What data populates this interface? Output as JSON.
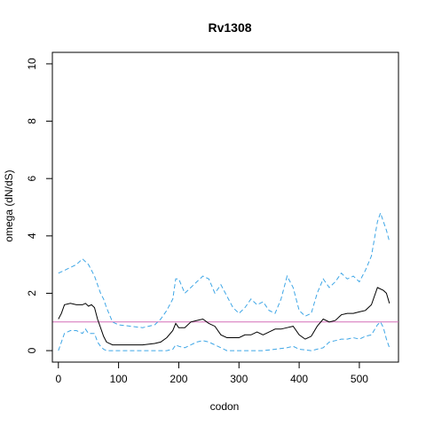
{
  "chart_data": {
    "type": "line",
    "title": "Rv1308",
    "xlabel": "codon",
    "ylabel": "omega (dN/dS)",
    "xlim": [
      -10,
      565
    ],
    "ylim": [
      -0.4,
      10.4
    ],
    "x_ticks": [
      0,
      100,
      200,
      300,
      400,
      500
    ],
    "y_ticks": [
      0,
      2,
      4,
      6,
      8,
      10
    ],
    "grid": false,
    "reference_line": {
      "y": 1,
      "color": "#d36fb8"
    },
    "series": [
      {
        "style": "dashed",
        "color": "#3ea6e6",
        "x": [
          0,
          10,
          20,
          30,
          40,
          45,
          50,
          60,
          65,
          70,
          75,
          80,
          90,
          100,
          120,
          140,
          150,
          160,
          170,
          180,
          190,
          195,
          200,
          210,
          220,
          230,
          240,
          250,
          260,
          270,
          280,
          290,
          300,
          310,
          320,
          330,
          340,
          350,
          360,
          370,
          380,
          390,
          400,
          410,
          420,
          430,
          440,
          450,
          460,
          470,
          480,
          490,
          500,
          510,
          520,
          530,
          535,
          540,
          545,
          550
        ],
        "y": [
          2.7,
          2.8,
          2.9,
          3.0,
          3.2,
          3.1,
          3.0,
          2.6,
          2.3,
          2.0,
          1.8,
          1.5,
          1.0,
          0.9,
          0.85,
          0.8,
          0.85,
          0.9,
          1.1,
          1.4,
          1.8,
          2.5,
          2.5,
          2.0,
          2.2,
          2.4,
          2.6,
          2.5,
          2.0,
          2.3,
          1.9,
          1.5,
          1.3,
          1.5,
          1.8,
          1.6,
          1.7,
          1.4,
          1.3,
          1.8,
          2.6,
          2.2,
          1.4,
          1.2,
          1.3,
          2.0,
          2.5,
          2.2,
          2.4,
          2.7,
          2.5,
          2.6,
          2.4,
          2.8,
          3.3,
          4.5,
          4.8,
          4.5,
          4.2,
          3.8
        ]
      },
      {
        "style": "solid",
        "color": "#000000",
        "x": [
          0,
          5,
          10,
          20,
          30,
          40,
          45,
          50,
          55,
          60,
          65,
          70,
          75,
          80,
          90,
          100,
          120,
          140,
          160,
          170,
          180,
          190,
          195,
          200,
          210,
          220,
          230,
          240,
          250,
          260,
          270,
          280,
          290,
          300,
          310,
          320,
          330,
          340,
          350,
          360,
          370,
          380,
          390,
          400,
          410,
          420,
          430,
          440,
          450,
          460,
          470,
          480,
          490,
          500,
          510,
          520,
          530,
          540,
          545,
          550
        ],
        "y": [
          1.1,
          1.3,
          1.6,
          1.65,
          1.6,
          1.6,
          1.65,
          1.55,
          1.6,
          1.5,
          1.1,
          0.8,
          0.5,
          0.3,
          0.2,
          0.2,
          0.2,
          0.2,
          0.25,
          0.3,
          0.45,
          0.7,
          0.95,
          0.8,
          0.8,
          1.0,
          1.05,
          1.1,
          0.95,
          0.85,
          0.55,
          0.45,
          0.45,
          0.45,
          0.55,
          0.55,
          0.65,
          0.55,
          0.65,
          0.75,
          0.75,
          0.8,
          0.85,
          0.55,
          0.4,
          0.5,
          0.85,
          1.1,
          1.0,
          1.05,
          1.25,
          1.3,
          1.3,
          1.35,
          1.4,
          1.6,
          2.2,
          2.1,
          2.0,
          1.65
        ]
      },
      {
        "style": "dashed",
        "color": "#3ea6e6",
        "x": [
          0,
          5,
          10,
          20,
          30,
          40,
          45,
          50,
          60,
          65,
          70,
          75,
          80,
          90,
          100,
          150,
          180,
          190,
          195,
          200,
          210,
          220,
          230,
          240,
          250,
          260,
          270,
          280,
          300,
          320,
          340,
          360,
          380,
          390,
          400,
          420,
          440,
          450,
          460,
          470,
          480,
          490,
          500,
          510,
          520,
          530,
          535,
          540,
          545,
          550
        ],
        "y": [
          0.0,
          0.3,
          0.6,
          0.7,
          0.7,
          0.6,
          0.75,
          0.6,
          0.6,
          0.3,
          0.15,
          0.05,
          0.0,
          0.0,
          0.0,
          0.0,
          0.0,
          0.05,
          0.2,
          0.15,
          0.1,
          0.2,
          0.3,
          0.35,
          0.3,
          0.2,
          0.1,
          0.0,
          0.0,
          0.0,
          0.0,
          0.05,
          0.1,
          0.15,
          0.05,
          0.0,
          0.1,
          0.3,
          0.35,
          0.4,
          0.4,
          0.45,
          0.4,
          0.5,
          0.55,
          0.9,
          1.0,
          0.8,
          0.4,
          0.1
        ]
      }
    ]
  }
}
